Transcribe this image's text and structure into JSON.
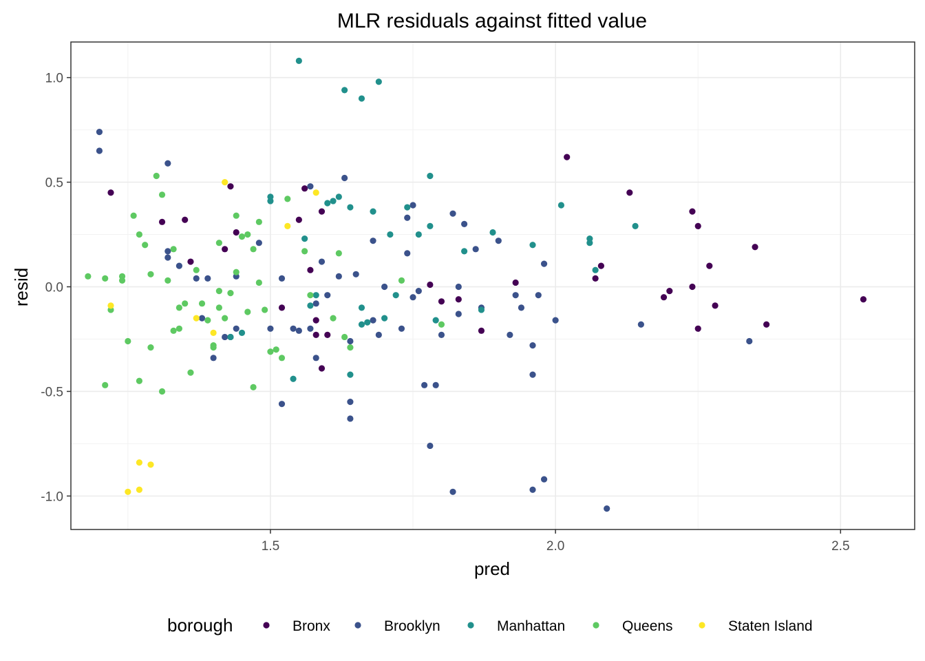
{
  "chart_data": {
    "type": "scatter",
    "title": "MLR residuals against fitted value",
    "xlabel": "pred",
    "ylabel": "resid",
    "xlim": [
      1.15,
      2.63
    ],
    "ylim": [
      -1.16,
      1.17
    ],
    "x_ticks": [
      1.5,
      2.0,
      2.5
    ],
    "x_tick_labels": [
      "1.5",
      "2.0",
      "2.5"
    ],
    "y_ticks": [
      -1.0,
      -0.5,
      0.0,
      0.5,
      1.0
    ],
    "y_tick_labels": [
      "-1.0",
      "-0.5",
      "0.0",
      "0.5",
      "1.0"
    ],
    "grid": true,
    "legend": {
      "title": "borough",
      "position": "bottom"
    },
    "series": [
      {
        "name": "Bronx",
        "color": "#440154",
        "points": [
          [
            1.22,
            0.45
          ],
          [
            1.31,
            0.31
          ],
          [
            1.35,
            0.32
          ],
          [
            1.36,
            0.12
          ],
          [
            1.42,
            0.18
          ],
          [
            1.43,
            0.48
          ],
          [
            1.44,
            0.26
          ],
          [
            1.52,
            -0.1
          ],
          [
            1.55,
            0.32
          ],
          [
            1.56,
            0.47
          ],
          [
            1.57,
            0.08
          ],
          [
            1.58,
            -0.23
          ],
          [
            1.58,
            -0.16
          ],
          [
            1.59,
            -0.39
          ],
          [
            1.59,
            0.36
          ],
          [
            1.6,
            -0.23
          ],
          [
            1.78,
            0.01
          ],
          [
            1.8,
            -0.07
          ],
          [
            1.83,
            -0.06
          ],
          [
            1.87,
            -0.21
          ],
          [
            1.93,
            0.02
          ],
          [
            2.02,
            0.62
          ],
          [
            2.07,
            0.04
          ],
          [
            2.08,
            0.1
          ],
          [
            2.13,
            0.45
          ],
          [
            2.19,
            -0.05
          ],
          [
            2.2,
            -0.02
          ],
          [
            2.24,
            0.0
          ],
          [
            2.24,
            0.36
          ],
          [
            2.25,
            0.29
          ],
          [
            2.25,
            -0.2
          ],
          [
            2.27,
            0.1
          ],
          [
            2.28,
            -0.09
          ],
          [
            2.35,
            0.19
          ],
          [
            2.37,
            -0.18
          ],
          [
            2.54,
            -0.06
          ]
        ]
      },
      {
        "name": "Brooklyn",
        "color": "#3b528b",
        "points": [
          [
            1.2,
            0.74
          ],
          [
            1.2,
            0.65
          ],
          [
            1.32,
            0.59
          ],
          [
            1.32,
            0.17
          ],
          [
            1.32,
            0.14
          ],
          [
            1.34,
            0.1
          ],
          [
            1.37,
            0.04
          ],
          [
            1.38,
            -0.15
          ],
          [
            1.39,
            0.04
          ],
          [
            1.4,
            -0.34
          ],
          [
            1.42,
            -0.24
          ],
          [
            1.43,
            -0.24
          ],
          [
            1.44,
            0.05
          ],
          [
            1.44,
            -0.2
          ],
          [
            1.48,
            0.21
          ],
          [
            1.5,
            -0.2
          ],
          [
            1.52,
            0.04
          ],
          [
            1.52,
            -0.56
          ],
          [
            1.54,
            -0.2
          ],
          [
            1.55,
            -0.21
          ],
          [
            1.57,
            -0.2
          ],
          [
            1.57,
            0.48
          ],
          [
            1.58,
            -0.34
          ],
          [
            1.58,
            -0.08
          ],
          [
            1.59,
            0.12
          ],
          [
            1.6,
            -0.04
          ],
          [
            1.62,
            0.05
          ],
          [
            1.63,
            0.52
          ],
          [
            1.64,
            -0.55
          ],
          [
            1.64,
            -0.26
          ],
          [
            1.64,
            -0.63
          ],
          [
            1.65,
            0.06
          ],
          [
            1.68,
            -0.16
          ],
          [
            1.68,
            0.22
          ],
          [
            1.69,
            -0.23
          ],
          [
            1.7,
            0.0
          ],
          [
            1.73,
            -0.2
          ],
          [
            1.74,
            0.33
          ],
          [
            1.74,
            0.16
          ],
          [
            1.75,
            -0.05
          ],
          [
            1.75,
            0.39
          ],
          [
            1.76,
            -0.02
          ],
          [
            1.77,
            -0.47
          ],
          [
            1.78,
            -0.76
          ],
          [
            1.79,
            -0.47
          ],
          [
            1.8,
            -0.23
          ],
          [
            1.82,
            -0.98
          ],
          [
            1.82,
            0.35
          ],
          [
            1.83,
            -0.13
          ],
          [
            1.83,
            0.0
          ],
          [
            1.84,
            0.3
          ],
          [
            1.86,
            0.18
          ],
          [
            1.87,
            -0.1
          ],
          [
            1.9,
            0.22
          ],
          [
            1.92,
            -0.23
          ],
          [
            1.93,
            -0.04
          ],
          [
            1.94,
            -0.1
          ],
          [
            1.96,
            -0.42
          ],
          [
            1.96,
            -0.28
          ],
          [
            1.96,
            -0.97
          ],
          [
            1.97,
            -0.04
          ],
          [
            1.98,
            0.11
          ],
          [
            1.98,
            -0.92
          ],
          [
            2.0,
            -0.16
          ],
          [
            2.09,
            -1.06
          ],
          [
            2.15,
            -0.18
          ],
          [
            2.34,
            -0.26
          ]
        ]
      },
      {
        "name": "Manhattan",
        "color": "#21908c",
        "points": [
          [
            1.43,
            -0.24
          ],
          [
            1.45,
            -0.22
          ],
          [
            1.5,
            0.43
          ],
          [
            1.5,
            0.41
          ],
          [
            1.54,
            -0.44
          ],
          [
            1.55,
            1.08
          ],
          [
            1.56,
            0.23
          ],
          [
            1.57,
            -0.09
          ],
          [
            1.58,
            -0.04
          ],
          [
            1.6,
            0.4
          ],
          [
            1.61,
            0.41
          ],
          [
            1.62,
            0.43
          ],
          [
            1.63,
            0.94
          ],
          [
            1.64,
            0.38
          ],
          [
            1.64,
            -0.42
          ],
          [
            1.66,
            0.9
          ],
          [
            1.66,
            -0.18
          ],
          [
            1.66,
            -0.1
          ],
          [
            1.67,
            -0.17
          ],
          [
            1.68,
            0.36
          ],
          [
            1.69,
            0.98
          ],
          [
            1.7,
            -0.15
          ],
          [
            1.71,
            0.25
          ],
          [
            1.72,
            -0.04
          ],
          [
            1.74,
            0.38
          ],
          [
            1.76,
            0.25
          ],
          [
            1.78,
            0.29
          ],
          [
            1.78,
            0.53
          ],
          [
            1.79,
            -0.16
          ],
          [
            1.84,
            0.17
          ],
          [
            1.87,
            -0.11
          ],
          [
            1.89,
            0.26
          ],
          [
            1.96,
            0.2
          ],
          [
            2.01,
            0.39
          ],
          [
            2.06,
            0.21
          ],
          [
            2.06,
            0.23
          ],
          [
            2.07,
            0.08
          ],
          [
            2.14,
            0.29
          ]
        ]
      },
      {
        "name": "Queens",
        "color": "#5ec962",
        "points": [
          [
            1.18,
            0.05
          ],
          [
            1.21,
            -0.47
          ],
          [
            1.21,
            0.04
          ],
          [
            1.22,
            -0.11
          ],
          [
            1.24,
            0.05
          ],
          [
            1.24,
            0.03
          ],
          [
            1.25,
            -0.26
          ],
          [
            1.26,
            0.34
          ],
          [
            1.27,
            0.25
          ],
          [
            1.27,
            -0.45
          ],
          [
            1.28,
            0.2
          ],
          [
            1.29,
            0.06
          ],
          [
            1.29,
            -0.29
          ],
          [
            1.3,
            0.53
          ],
          [
            1.31,
            -0.5
          ],
          [
            1.31,
            0.44
          ],
          [
            1.32,
            0.03
          ],
          [
            1.33,
            0.18
          ],
          [
            1.33,
            -0.21
          ],
          [
            1.34,
            -0.1
          ],
          [
            1.34,
            -0.2
          ],
          [
            1.35,
            -0.08
          ],
          [
            1.36,
            -0.41
          ],
          [
            1.37,
            0.08
          ],
          [
            1.38,
            -0.08
          ],
          [
            1.39,
            -0.16
          ],
          [
            1.4,
            -0.28
          ],
          [
            1.4,
            -0.29
          ],
          [
            1.41,
            -0.02
          ],
          [
            1.41,
            0.21
          ],
          [
            1.41,
            -0.1
          ],
          [
            1.42,
            -0.15
          ],
          [
            1.43,
            -0.03
          ],
          [
            1.44,
            0.34
          ],
          [
            1.44,
            0.07
          ],
          [
            1.45,
            0.24
          ],
          [
            1.46,
            0.25
          ],
          [
            1.46,
            -0.12
          ],
          [
            1.47,
            0.18
          ],
          [
            1.47,
            -0.48
          ],
          [
            1.48,
            0.31
          ],
          [
            1.48,
            0.02
          ],
          [
            1.49,
            -0.11
          ],
          [
            1.5,
            -0.31
          ],
          [
            1.51,
            -0.3
          ],
          [
            1.52,
            -0.34
          ],
          [
            1.53,
            0.42
          ],
          [
            1.56,
            0.17
          ],
          [
            1.57,
            -0.04
          ],
          [
            1.61,
            -0.15
          ],
          [
            1.62,
            0.16
          ],
          [
            1.63,
            -0.24
          ],
          [
            1.64,
            -0.29
          ],
          [
            1.73,
            0.03
          ],
          [
            1.8,
            -0.18
          ]
        ]
      },
      {
        "name": "Staten Island",
        "color": "#fde725",
        "points": [
          [
            1.22,
            -0.09
          ],
          [
            1.25,
            -0.98
          ],
          [
            1.27,
            -0.97
          ],
          [
            1.27,
            -0.84
          ],
          [
            1.29,
            -0.85
          ],
          [
            1.37,
            -0.15
          ],
          [
            1.4,
            -0.22
          ],
          [
            1.42,
            0.5
          ],
          [
            1.53,
            0.29
          ],
          [
            1.58,
            0.45
          ]
        ]
      }
    ]
  }
}
